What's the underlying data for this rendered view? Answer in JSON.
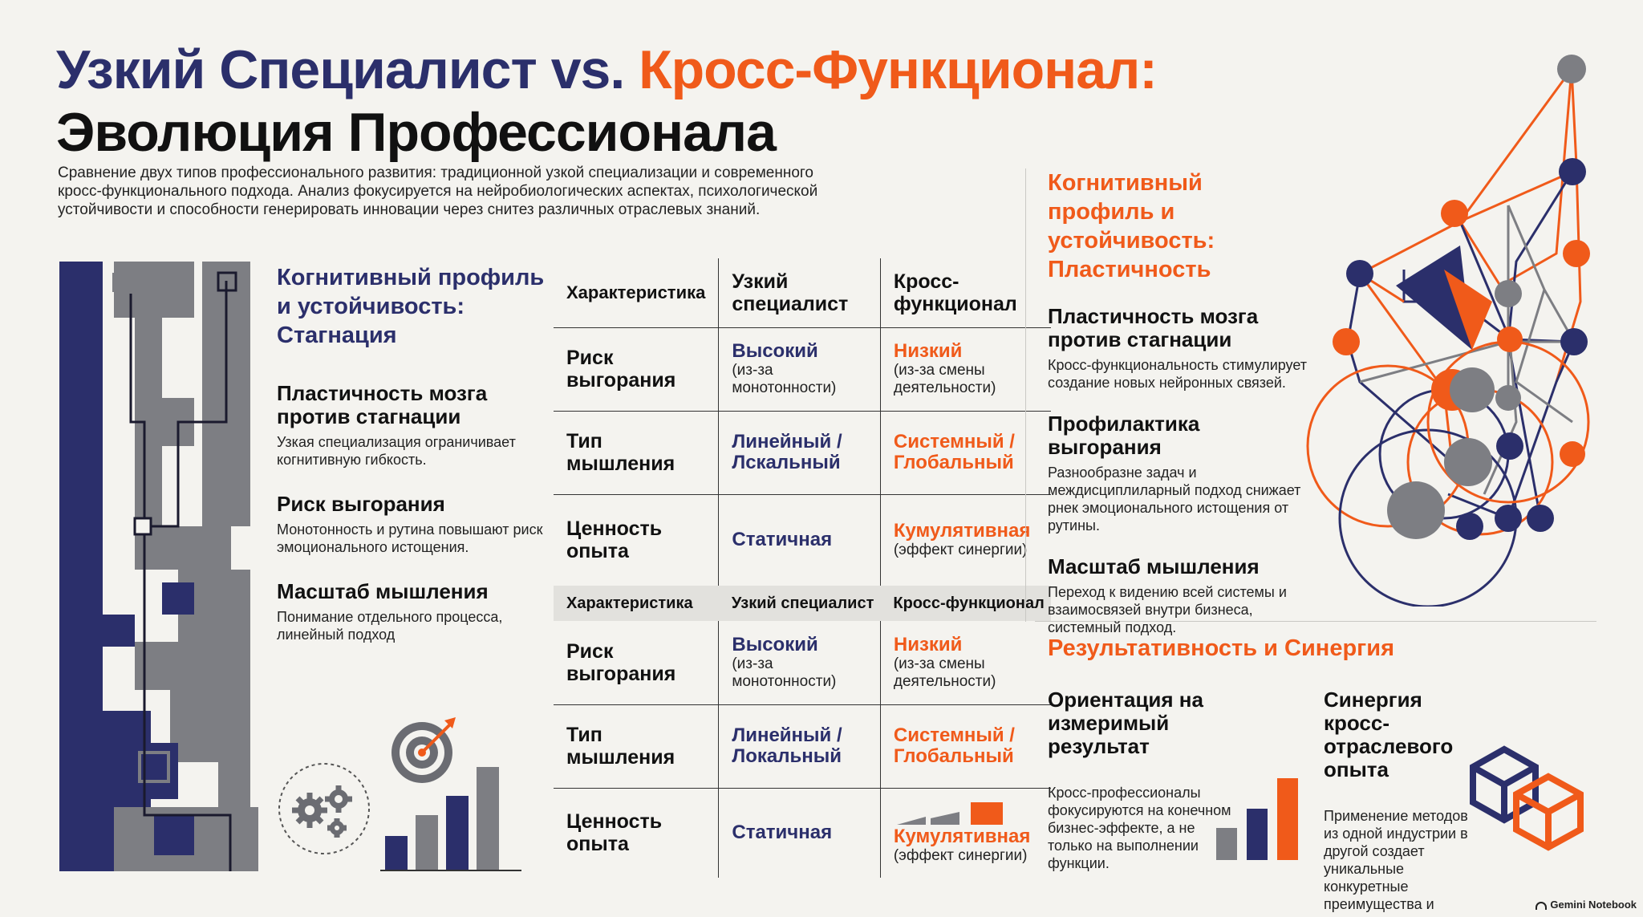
{
  "title": {
    "part1": "Узкий Специалист ",
    "vs": "vs.",
    "part2": " Кросс-Функционал:",
    "line2": "Эволюция Профессионала"
  },
  "intro": "Сравнение двух типов профессионального развития: традиционной узкой специализации и современного кросс-функционального подхода. Анализ фокусируется на нейробиологических аспектах, психологической устойчивости и способности генерировать инновации через снитез различных отраслевых знаний.",
  "left": {
    "title": "Когнитивный профиль и устойчивость: Стагнация",
    "items": [
      {
        "title": "Пластичность мозга против стагнации",
        "text": "Узкая специализация ограничивает когнитивную гибкость."
      },
      {
        "title": "Риск выгорания",
        "text": "Монотонность и рутина повышают риск эмоционального истощения."
      },
      {
        "title": "Масштаб мышления",
        "text": "Понимание отдельного процесса, линейный подход"
      }
    ]
  },
  "table": {
    "head": [
      "Характеристика",
      "Узкий специалист",
      "Кросс-функционал"
    ],
    "rows": [
      {
        "label": "Риск выгорания",
        "spec": "Высокий",
        "spec_note": "(из-за монотонности)",
        "cross": "Низкий",
        "cross_note": "(из-за смены деятельности)"
      },
      {
        "label": "Тип мышления",
        "spec": "Линейный / Лскальный",
        "spec_note": "",
        "cross": "Системный / Глобальный",
        "cross_note": ""
      },
      {
        "label": "Ценность опыта",
        "spec": "Статичная",
        "spec_note": "",
        "cross": "Кумулятивная",
        "cross_note": "(эффект синергии)"
      }
    ],
    "head2": [
      "Характеристика",
      "Узкий специалист",
      "Кросс-функционал"
    ],
    "rows2": [
      {
        "label": "Риск выгорания",
        "spec": "Высокий",
        "spec_note": "(из-за монотонности)",
        "cross": "Низкий",
        "cross_note": "(из-за смены деятельности)"
      },
      {
        "label": "Тип мышления",
        "spec": "Линейный / Локальный",
        "spec_note": "",
        "cross": "Системный / Глобальный",
        "cross_note": ""
      },
      {
        "label": "Ценность опыта",
        "spec": "Статичная",
        "spec_note": "",
        "cross": "Кумулятивная",
        "cross_note": "(эффект синергии)"
      }
    ]
  },
  "right": {
    "title": "Когнитивный профиль и устойчивость: Пластичность",
    "items": [
      {
        "title": "Пластичность мозга против стагнации",
        "text": "Кросс-функциональность стимулирует создание новых нейронных связей."
      },
      {
        "title": "Профилактика выгорания",
        "text": "Разнообразне задач и междисциплиларный подход снижает рнек эмоционального истощения от рутины."
      },
      {
        "title": "Масштаб мышления",
        "text": "Переход к видению всей системы и взаимосвязей внутри бизнеса, системный подход."
      }
    ]
  },
  "results": {
    "title": "Результативность и Синергия",
    "a_title": "Ориентация на измеримый результат",
    "a_text": "Кросс-профессионалы фокусируются на конечном бизнес-эффекте, а не только на выполнении функции.",
    "b_title": "Синергия кросс-отраслевого опыта",
    "b_text": "Применение методов из одной индустрии в другой создает уникальные конкуретные преимущества и инновации."
  },
  "brand": "Gemini Notebook",
  "colors": {
    "navy": "#2b2f6b",
    "orange": "#f05a1a",
    "gray": "#7d7e83",
    "bg": "#f4f3ef"
  },
  "icons": [
    "maze-illustration",
    "gears-icon",
    "target-icon",
    "bar-chart-icon",
    "network-illustration",
    "hexagon-cubes-icon"
  ]
}
